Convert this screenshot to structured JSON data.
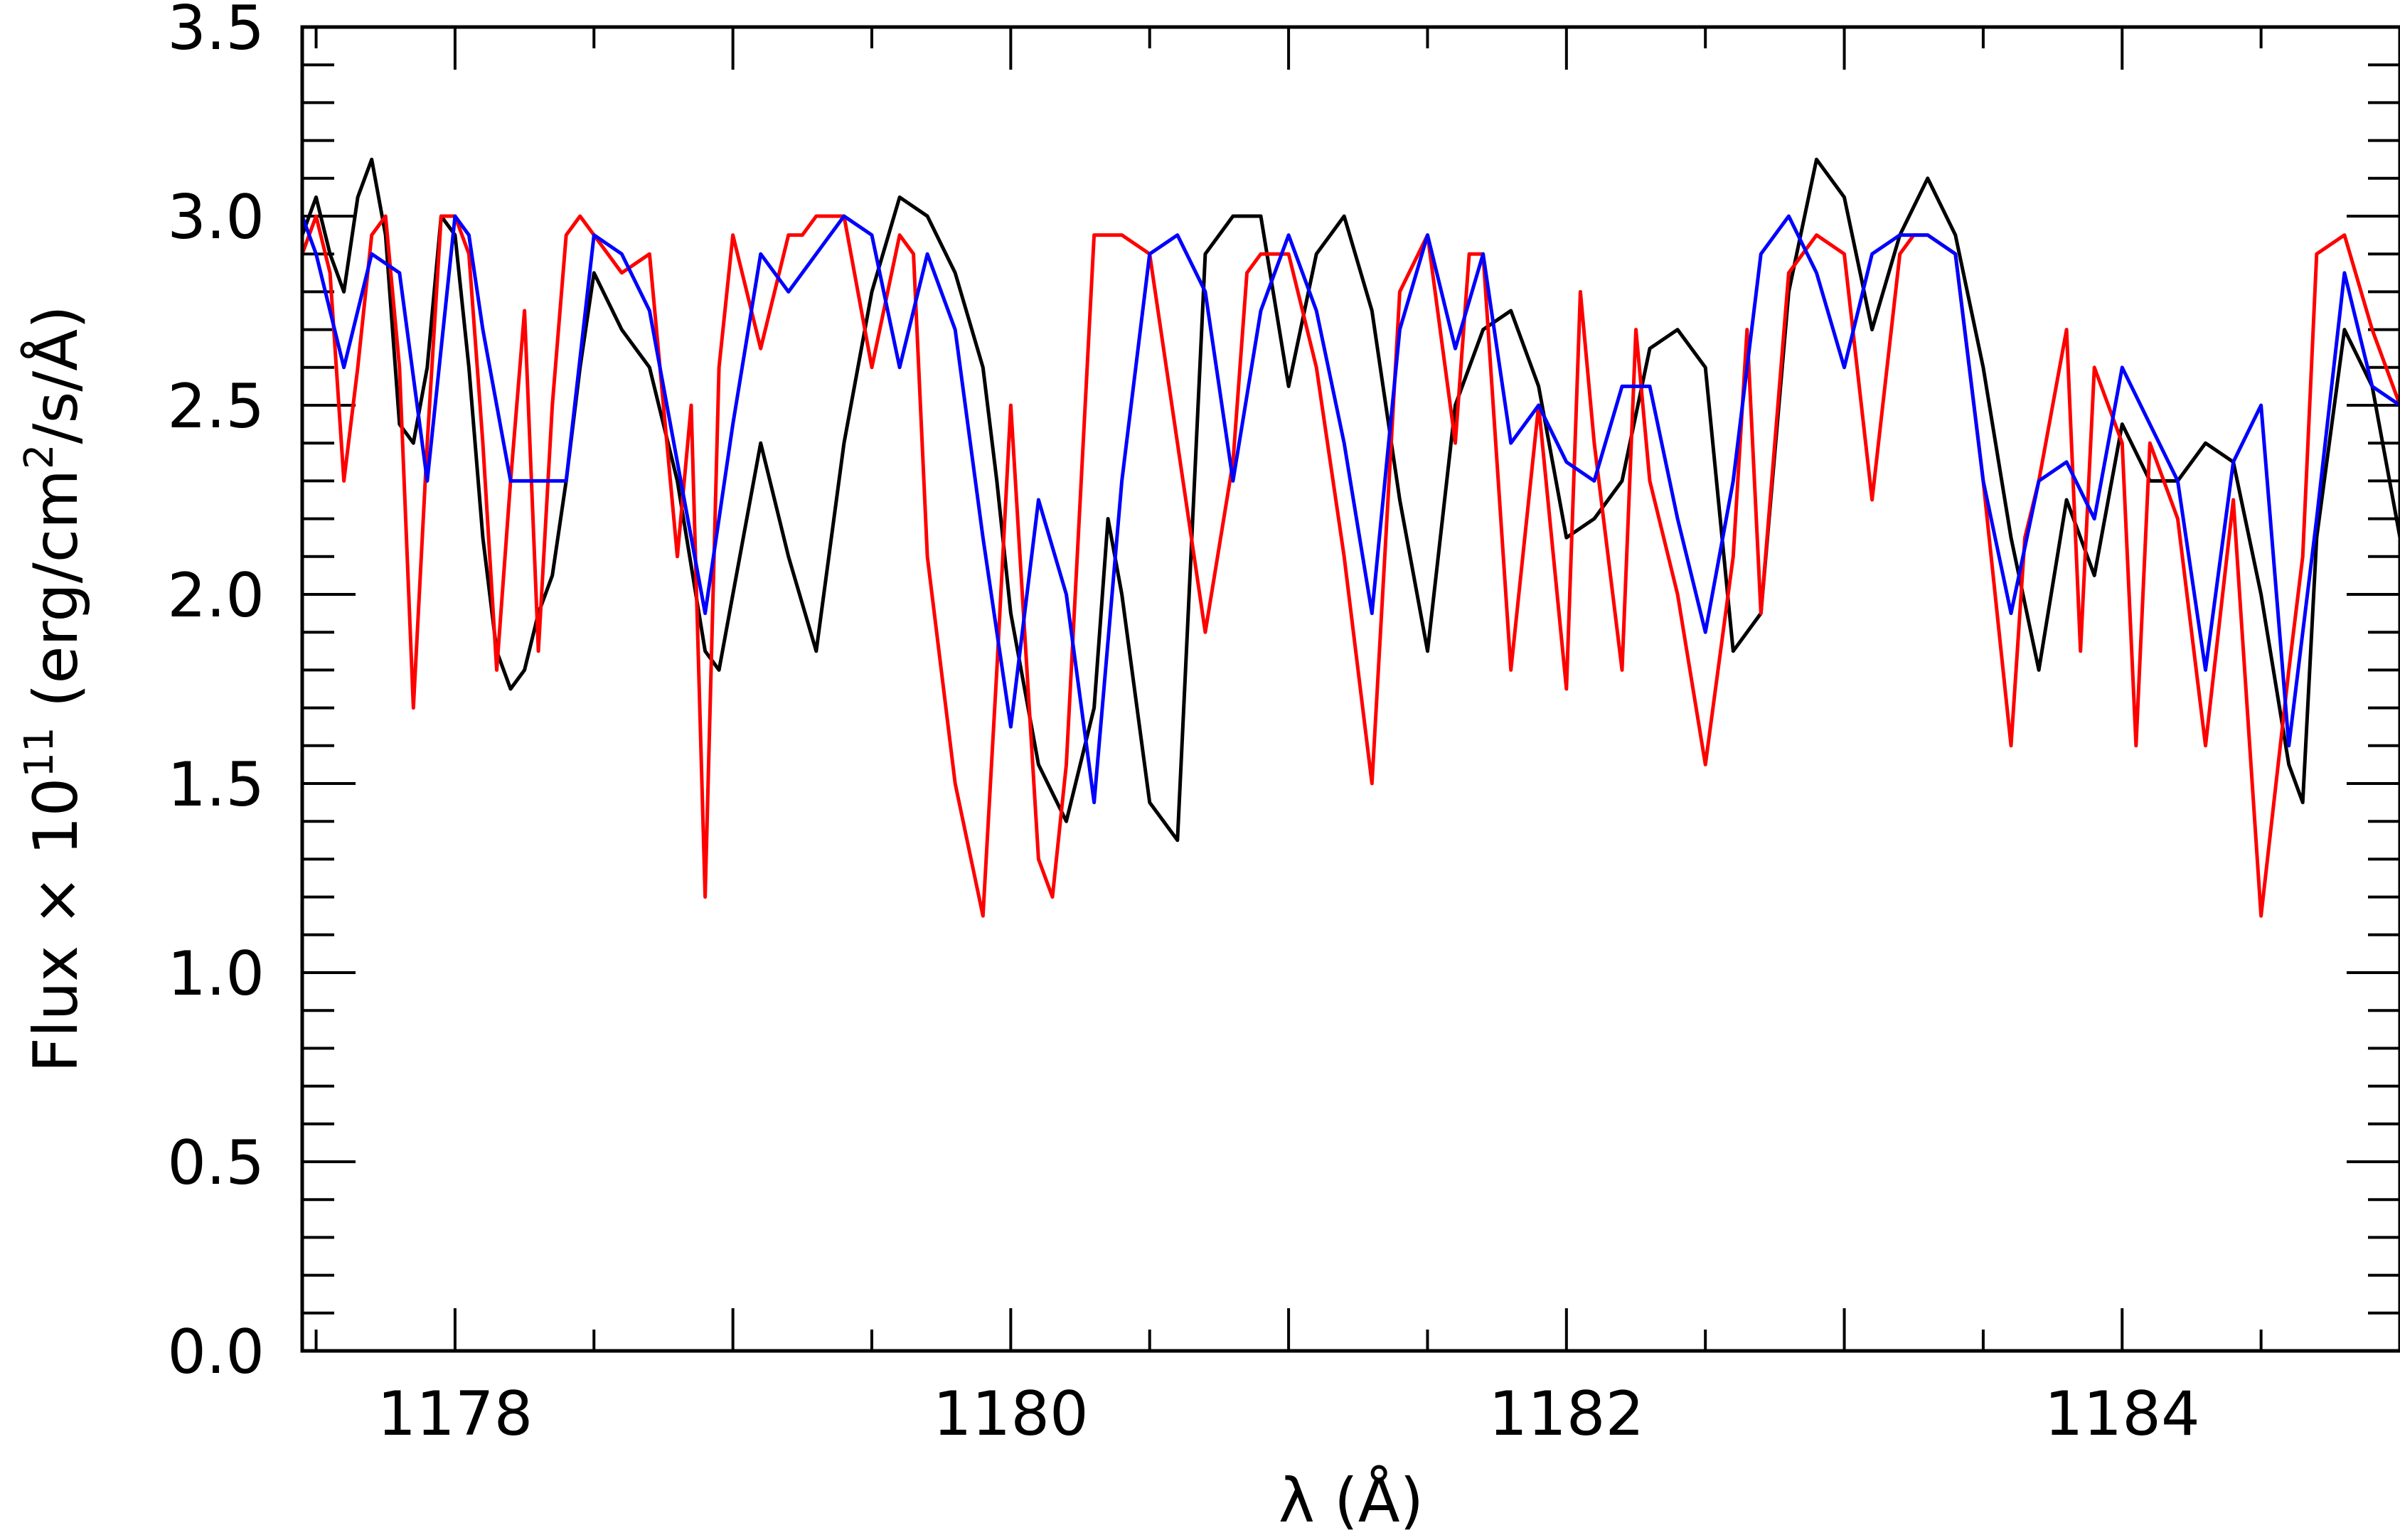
{
  "chart_data": {
    "type": "line",
    "title": "",
    "xlabel": "λ (Å)",
    "ylabel": "Flux × 10^11 (erg/cm^2/s/Å)",
    "ylabel_parts": {
      "prefix": "Flux × 10",
      "exp1": "11",
      "middle": " (erg/cm",
      "exp2": "2",
      "suffix": "/s/Å)"
    },
    "xlim": [
      1177.45,
      1185.0
    ],
    "ylim": [
      0.0,
      3.5
    ],
    "xticks": [
      1178,
      1180,
      1182,
      1184
    ],
    "xtick_labels": [
      "1178",
      "1180",
      "1182",
      "1184"
    ],
    "yticks": [
      0.0,
      0.5,
      1.0,
      1.5,
      2.0,
      2.5,
      3.0,
      3.5
    ],
    "ytick_labels": [
      "0.0",
      "0.5",
      "1.0",
      "1.5",
      "2.0",
      "2.5",
      "3.0",
      "3.5"
    ],
    "grid": false,
    "legend": "none",
    "series": [
      {
        "color": "#000000",
        "x": [
          1177.45,
          1177.5,
          1177.55,
          1177.6,
          1177.65,
          1177.7,
          1177.75,
          1177.8,
          1177.85,
          1177.9,
          1177.95,
          1178.0,
          1178.05,
          1178.1,
          1178.15,
          1178.2,
          1178.25,
          1178.3,
          1178.35,
          1178.4,
          1178.45,
          1178.5,
          1178.6,
          1178.7,
          1178.8,
          1178.9,
          1178.95,
          1179.0,
          1179.1,
          1179.2,
          1179.3,
          1179.4,
          1179.5,
          1179.6,
          1179.7,
          1179.8,
          1179.9,
          1179.95,
          1180.0,
          1180.1,
          1180.2,
          1180.3,
          1180.35,
          1180.4,
          1180.5,
          1180.6,
          1180.7,
          1180.8,
          1180.9,
          1181.0,
          1181.1,
          1181.2,
          1181.3,
          1181.35,
          1181.4,
          1181.5,
          1181.6,
          1181.7,
          1181.8,
          1181.9,
          1182.0,
          1182.1,
          1182.2,
          1182.3,
          1182.4,
          1182.5,
          1182.6,
          1182.7,
          1182.8,
          1182.9,
          1183.0,
          1183.1,
          1183.2,
          1183.3,
          1183.4,
          1183.5,
          1183.6,
          1183.7,
          1183.8,
          1183.9,
          1184.0,
          1184.1,
          1184.2,
          1184.3,
          1184.4,
          1184.5,
          1184.6,
          1184.65,
          1184.7,
          1184.8,
          1184.9,
          1185.0
        ],
        "y": [
          2.95,
          3.05,
          2.9,
          2.8,
          3.05,
          3.15,
          2.95,
          2.45,
          2.4,
          2.6,
          3.0,
          2.95,
          2.6,
          2.15,
          1.85,
          1.75,
          1.8,
          1.95,
          2.05,
          2.3,
          2.6,
          2.85,
          2.7,
          2.6,
          2.3,
          1.85,
          1.8,
          2.0,
          2.4,
          2.1,
          1.85,
          2.4,
          2.8,
          3.05,
          3.0,
          2.85,
          2.6,
          2.3,
          1.95,
          1.55,
          1.4,
          1.7,
          2.2,
          2.0,
          1.45,
          1.35,
          2.9,
          3.0,
          3.0,
          2.55,
          2.9,
          3.0,
          2.75,
          2.5,
          2.25,
          1.85,
          2.5,
          2.7,
          2.75,
          2.55,
          2.15,
          2.2,
          2.3,
          2.65,
          2.7,
          2.6,
          1.85,
          1.95,
          2.8,
          3.15,
          3.05,
          2.7,
          2.95,
          3.1,
          2.95,
          2.6,
          2.15,
          1.8,
          2.25,
          2.05,
          2.45,
          2.3,
          2.3,
          2.4,
          2.35,
          2.0,
          1.55,
          1.45,
          2.15,
          2.7,
          2.55,
          2.15
        ]
      },
      {
        "color": "#ff0000",
        "x": [
          1177.45,
          1177.5,
          1177.55,
          1177.6,
          1177.65,
          1177.7,
          1177.75,
          1177.8,
          1177.85,
          1177.9,
          1177.95,
          1178.0,
          1178.05,
          1178.1,
          1178.15,
          1178.2,
          1178.25,
          1178.3,
          1178.35,
          1178.4,
          1178.45,
          1178.5,
          1178.6,
          1178.7,
          1178.8,
          1178.85,
          1178.9,
          1178.95,
          1179.0,
          1179.1,
          1179.2,
          1179.25,
          1179.3,
          1179.4,
          1179.5,
          1179.6,
          1179.65,
          1179.7,
          1179.8,
          1179.9,
          1179.95,
          1180.0,
          1180.05,
          1180.1,
          1180.15,
          1180.2,
          1180.3,
          1180.35,
          1180.4,
          1180.5,
          1180.6,
          1180.7,
          1180.8,
          1180.85,
          1180.9,
          1181.0,
          1181.1,
          1181.2,
          1181.3,
          1181.4,
          1181.5,
          1181.6,
          1181.65,
          1181.7,
          1181.8,
          1181.9,
          1182.0,
          1182.05,
          1182.1,
          1182.2,
          1182.25,
          1182.3,
          1182.4,
          1182.5,
          1182.6,
          1182.65,
          1182.7,
          1182.8,
          1182.9,
          1183.0,
          1183.1,
          1183.2,
          1183.25,
          1183.3,
          1183.4,
          1183.5,
          1183.6,
          1183.65,
          1183.7,
          1183.8,
          1183.85,
          1183.9,
          1184.0,
          1184.05,
          1184.1,
          1184.2,
          1184.3,
          1184.4,
          1184.5,
          1184.6,
          1184.65,
          1184.7,
          1184.8,
          1184.9,
          1185.0
        ],
        "y": [
          2.9,
          3.0,
          2.85,
          2.3,
          2.6,
          2.95,
          3.0,
          2.6,
          1.7,
          2.4,
          3.0,
          3.0,
          2.9,
          2.4,
          1.8,
          2.3,
          2.75,
          1.85,
          2.5,
          2.95,
          3.0,
          2.95,
          2.85,
          2.9,
          2.1,
          2.5,
          1.2,
          2.6,
          2.95,
          2.65,
          2.95,
          2.95,
          3.0,
          3.0,
          2.6,
          2.95,
          2.9,
          2.1,
          1.5,
          1.15,
          1.8,
          2.5,
          1.9,
          1.3,
          1.2,
          1.55,
          2.95,
          2.95,
          2.95,
          2.9,
          2.4,
          1.9,
          2.35,
          2.85,
          2.9,
          2.9,
          2.6,
          2.1,
          1.5,
          2.8,
          2.95,
          2.4,
          2.9,
          2.9,
          1.8,
          2.5,
          1.75,
          2.8,
          2.4,
          1.8,
          2.7,
          2.3,
          2.0,
          1.55,
          2.1,
          2.7,
          1.95,
          2.85,
          2.95,
          2.9,
          2.25,
          2.9,
          2.95,
          2.95,
          2.9,
          2.3,
          1.6,
          2.15,
          2.3,
          2.7,
          1.85,
          2.6,
          2.4,
          1.6,
          2.4,
          2.2,
          1.6,
          2.25,
          1.15,
          1.8,
          2.1,
          2.9,
          2.95,
          2.7,
          2.5
        ]
      },
      {
        "color": "#0000ff",
        "x": [
          1177.45,
          1177.5,
          1177.6,
          1177.7,
          1177.8,
          1177.9,
          1178.0,
          1178.05,
          1178.1,
          1178.2,
          1178.3,
          1178.4,
          1178.5,
          1178.6,
          1178.7,
          1178.8,
          1178.9,
          1179.0,
          1179.1,
          1179.2,
          1179.3,
          1179.4,
          1179.5,
          1179.6,
          1179.7,
          1179.8,
          1179.9,
          1180.0,
          1180.1,
          1180.2,
          1180.3,
          1180.4,
          1180.5,
          1180.6,
          1180.7,
          1180.8,
          1180.9,
          1181.0,
          1181.1,
          1181.2,
          1181.3,
          1181.4,
          1181.5,
          1181.6,
          1181.7,
          1181.8,
          1181.9,
          1182.0,
          1182.1,
          1182.2,
          1182.3,
          1182.4,
          1182.5,
          1182.6,
          1182.7,
          1182.8,
          1182.9,
          1183.0,
          1183.1,
          1183.2,
          1183.3,
          1183.4,
          1183.5,
          1183.6,
          1183.7,
          1183.8,
          1183.9,
          1184.0,
          1184.1,
          1184.2,
          1184.3,
          1184.4,
          1184.5,
          1184.6,
          1184.7,
          1184.8,
          1184.9,
          1185.0
        ],
        "y": [
          3.0,
          2.9,
          2.6,
          2.9,
          2.85,
          2.3,
          3.0,
          2.95,
          2.7,
          2.3,
          2.3,
          2.3,
          2.95,
          2.9,
          2.75,
          2.35,
          1.95,
          2.45,
          2.9,
          2.8,
          2.9,
          3.0,
          2.95,
          2.6,
          2.9,
          2.7,
          2.15,
          1.65,
          2.25,
          2.0,
          1.45,
          2.3,
          2.9,
          2.95,
          2.8,
          2.3,
          2.75,
          2.95,
          2.75,
          2.4,
          1.95,
          2.7,
          2.95,
          2.65,
          2.9,
          2.4,
          2.5,
          2.35,
          2.3,
          2.55,
          2.55,
          2.2,
          1.9,
          2.3,
          2.9,
          3.0,
          2.85,
          2.6,
          2.9,
          2.95,
          2.95,
          2.9,
          2.3,
          1.95,
          2.3,
          2.35,
          2.2,
          2.6,
          2.45,
          2.3,
          1.8,
          2.35,
          2.5,
          1.6,
          2.2,
          2.85,
          2.55,
          2.5
        ]
      }
    ]
  }
}
